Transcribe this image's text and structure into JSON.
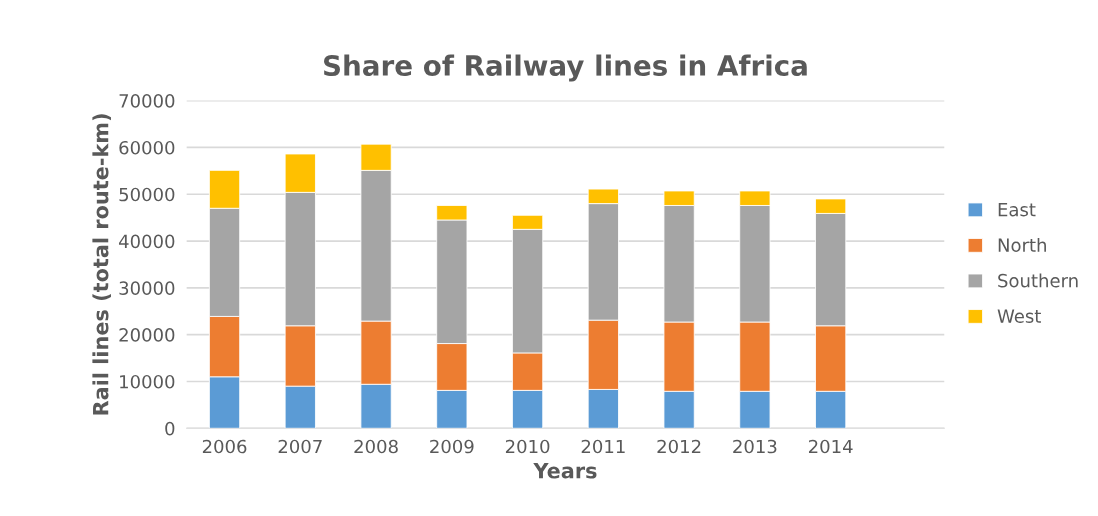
{
  "chart_data": {
    "type": "bar",
    "title": "Share of Railway lines in Africa",
    "xlabel": "Years",
    "ylabel": "Rail lines (total route-km)",
    "categories": [
      "2006",
      "2007",
      "2008",
      "2009",
      "2010",
      "2011",
      "2012",
      "2013",
      "2014",
      null
    ],
    "stacked": true,
    "series": [
      {
        "name": "East",
        "color": "#5b9bd5",
        "values": [
          11000,
          9000,
          9400,
          8100,
          8100,
          8300,
          7900,
          7900,
          7900,
          null
        ]
      },
      {
        "name": "North",
        "color": "#ed7d31",
        "values": [
          12900,
          12900,
          13500,
          10000,
          8000,
          14800,
          14800,
          14800,
          14000,
          null
        ]
      },
      {
        "name": "Southern",
        "color": "#a5a5a5",
        "values": [
          23100,
          28500,
          32200,
          26400,
          26400,
          24900,
          24900,
          24900,
          24000,
          null
        ]
      },
      {
        "name": "West",
        "color": "#ffc000",
        "values": [
          8100,
          8200,
          5600,
          3100,
          3000,
          3100,
          3100,
          3100,
          3100,
          null
        ]
      }
    ],
    "ylim": [
      0,
      70000
    ],
    "yticks": [
      0,
      10000,
      20000,
      30000,
      40000,
      50000,
      60000,
      70000
    ],
    "grid": "y",
    "legend": "right"
  }
}
